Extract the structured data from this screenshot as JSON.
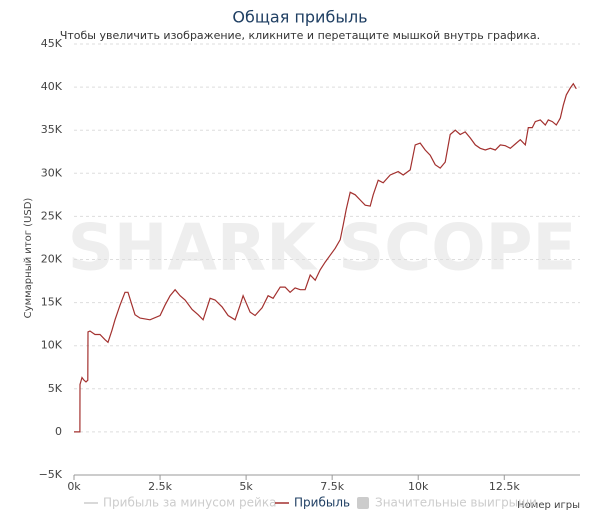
{
  "chart_data": {
    "type": "line",
    "title": "Общая прибыль",
    "subtitle": "Чтобы увеличить изображение, кликните и перетащите мышкой внутрь графика.",
    "watermark": "SHARK SCOPE",
    "y_label": "Суммарный итог (USD)",
    "x_label": "Номер игры",
    "xlim": [
      0,
      14700
    ],
    "ylim": [
      -5000,
      45000
    ],
    "xticks": [
      {
        "value": 0,
        "label": "0k"
      },
      {
        "value": 2500,
        "label": "2.5k"
      },
      {
        "value": 5000,
        "label": "5k"
      },
      {
        "value": 7500,
        "label": "7.5k"
      },
      {
        "value": 10000,
        "label": "10k"
      },
      {
        "value": 12500,
        "label": "12.5k"
      }
    ],
    "yticks": [
      {
        "value": -5000,
        "label": "−5K"
      },
      0,
      {
        "value": 5000,
        "label": "5K"
      },
      {
        "value": 10000,
        "label": "10K"
      },
      {
        "value": 15000,
        "label": "15K"
      },
      {
        "value": 20000,
        "label": "20K"
      },
      {
        "value": 25000,
        "label": "25K"
      },
      {
        "value": 30000,
        "label": "30K"
      },
      {
        "value": 35000,
        "label": "35K"
      },
      {
        "value": 40000,
        "label": "40K"
      },
      {
        "value": 45000,
        "label": "45K"
      }
    ],
    "grid": true,
    "hidden_series": [
      {
        "name": "Прибыль за минусом рейка",
        "color": "#cccccc",
        "symbol": "line"
      },
      {
        "name": "Значительные выигрыши",
        "color": "#cccccc",
        "symbol": "box"
      }
    ],
    "x": [
      0,
      170,
      174,
      233,
      291,
      349,
      400,
      407,
      465,
      610,
      756,
      901,
      988,
      1105,
      1192,
      1337,
      1483,
      1570,
      1686,
      1773,
      1919,
      2209,
      2500,
      2645,
      2791,
      2936,
      3081,
      3227,
      3430,
      3605,
      3750,
      3954,
      4099,
      4302,
      4477,
      4680,
      4826,
      4913,
      5116,
      5262,
      5465,
      5640,
      5785,
      5989,
      6134,
      6279,
      6424,
      6570,
      6715,
      6861,
      7006,
      7151,
      7297,
      7442,
      7587,
      7733,
      7820,
      7907,
      8023,
      8169,
      8314,
      8459,
      8605,
      8692,
      8837,
      8983,
      9186,
      9419,
      9564,
      9768,
      9913,
      10058,
      10204,
      10349,
      10494,
      10640,
      10785,
      10930,
      11076,
      11221,
      11366,
      11512,
      11657,
      11802,
      11948,
      12093,
      12238,
      12384,
      12529,
      12674,
      12820,
      12965,
      13111,
      13198,
      13314,
      13401,
      13547,
      13692,
      13779,
      13895,
      14011,
      14128,
      14215,
      14302,
      14418,
      14506,
      14593
    ],
    "series": [
      {
        "name": "Прибыль",
        "color": "#a3312f",
        "values": [
          0,
          0,
          5500,
          6300,
          6000,
          5800,
          6000,
          11600,
          11700,
          11300,
          11300,
          10700,
          10400,
          11800,
          13000,
          14700,
          16200,
          16200,
          14700,
          13600,
          13200,
          13000,
          13500,
          14700,
          15800,
          16500,
          15800,
          15300,
          14200,
          13600,
          13000,
          15500,
          15300,
          14500,
          13500,
          13000,
          14700,
          15800,
          13900,
          13500,
          14400,
          15800,
          15500,
          16800,
          16800,
          16200,
          16700,
          16500,
          16500,
          18200,
          17600,
          18800,
          19700,
          20500,
          21300,
          22300,
          24000,
          25800,
          27800,
          27500,
          26900,
          26300,
          26200,
          27500,
          29200,
          28900,
          29800,
          30200,
          29800,
          30400,
          33300,
          33500,
          32700,
          32100,
          31000,
          30600,
          31300,
          34500,
          35000,
          34500,
          34800,
          34100,
          33300,
          32900,
          32700,
          32900,
          32700,
          33300,
          33200,
          32900,
          33400,
          33900,
          33300,
          35300,
          35300,
          36000,
          36200,
          35600,
          36200,
          36000,
          35600,
          36400,
          37900,
          39100,
          39900,
          40400,
          39800
        ]
      }
    ]
  }
}
